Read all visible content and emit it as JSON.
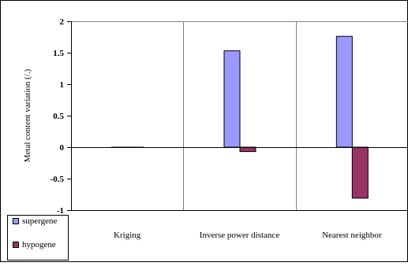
{
  "chart_data": {
    "type": "bar",
    "title": "",
    "xlabel": "",
    "ylabel": "Metal content variation (/.)",
    "ylim": [
      -1,
      2
    ],
    "y_ticks": [
      -1,
      -0.5,
      0,
      0.5,
      1,
      1.5,
      2
    ],
    "y_tick_labels": [
      "-1",
      "-0.5",
      "0",
      "0.5",
      "1",
      "1.5",
      "2"
    ],
    "categories": [
      "Kriging",
      "Inverse power distance",
      "Nearest neighbor"
    ],
    "series": [
      {
        "name": "supergene",
        "values": [
          0.0,
          1.53,
          1.76
        ],
        "color": "#9999FF"
      },
      {
        "name": "hypogene",
        "values": [
          0.0,
          -0.07,
          -0.81
        ],
        "color": "#993366"
      }
    ],
    "grid": true,
    "legend_position": "bottom-left",
    "bar_edge_color": "#000000",
    "grid_color": "#808080"
  }
}
